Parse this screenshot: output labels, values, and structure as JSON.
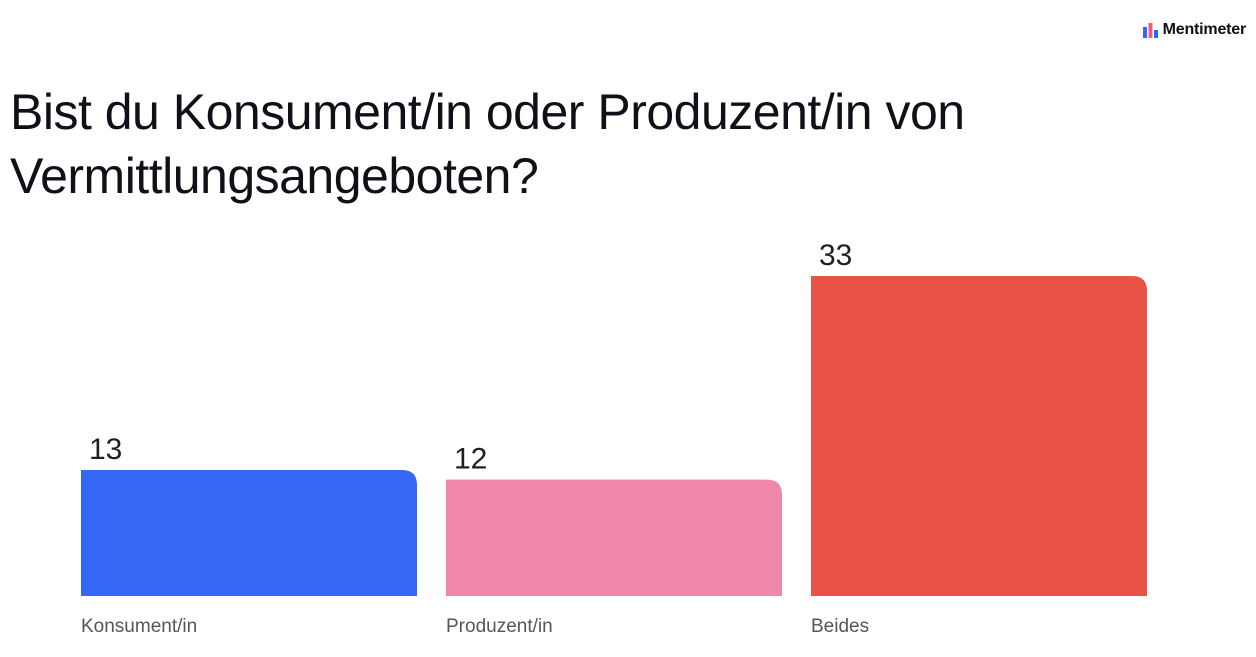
{
  "brand": {
    "name": "Mentimeter",
    "icon": "mentimeter-logo-icon",
    "icon_colors": [
      "#3b63f5",
      "#ec5f7a",
      "#196cff"
    ]
  },
  "slide": {
    "question": "Bist du Konsument/in oder Produzent/in von Vermittlungsangeboten?"
  },
  "chart_data": {
    "type": "bar",
    "title": "Bist du Konsument/in oder Produzent/in von Vermittlungsangeboten?",
    "categories": [
      "Konsument/in",
      "Produzent/in",
      "Beides"
    ],
    "values": [
      13,
      12,
      33
    ],
    "colors": [
      "#3468f5",
      "#ef87a9",
      "#ea5248"
    ],
    "ylim": [
      0,
      33
    ],
    "grid": false,
    "legend": "none",
    "xlabel": "",
    "ylabel": ""
  }
}
